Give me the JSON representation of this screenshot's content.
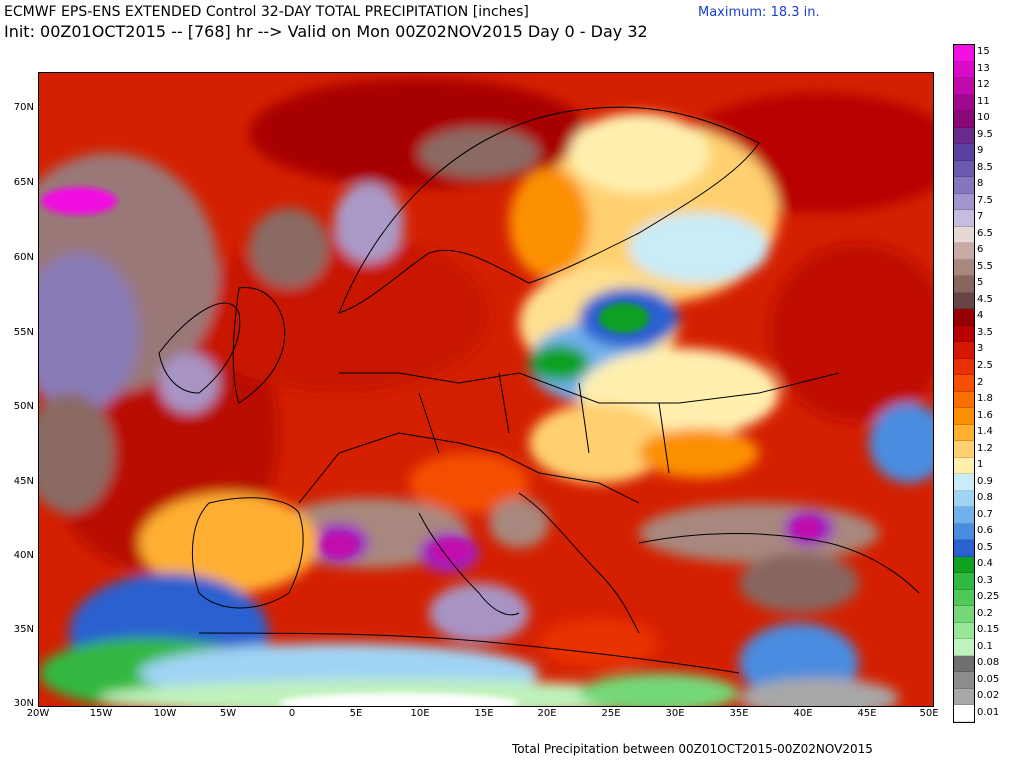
{
  "header": {
    "title_line1": "ECMWF EPS-ENS EXTENDED Control 32-DAY TOTAL PRECIPITATION [inches]",
    "title_line2": "Init: 00Z01OCT2015 -- [768] hr --> Valid on Mon 00Z02NOV2015  Day 0 - Day 32",
    "maximum": "Maximum:  18.3 in."
  },
  "footer": {
    "caption": "Total Precipitation between 00Z01OCT2015-00Z02NOV2015"
  },
  "map": {
    "lat_labels": [
      "70N",
      "65N",
      "60N",
      "55N",
      "50N",
      "45N",
      "40N",
      "35N",
      "30N"
    ],
    "lon_labels": [
      "20W",
      "15W",
      "10W",
      "5W",
      "0",
      "5E",
      "10E",
      "15E",
      "20E",
      "25E",
      "30E",
      "35E",
      "40E",
      "45E",
      "50E"
    ],
    "legend": [
      {
        "label": "15",
        "color": "#f010e0"
      },
      {
        "label": "13",
        "color": "#d80cc8"
      },
      {
        "label": "12",
        "color": "#c00aac"
      },
      {
        "label": "11",
        "color": "#a00890"
      },
      {
        "label": "10",
        "color": "#880878"
      },
      {
        "label": "9.5",
        "color": "#6a2a8c"
      },
      {
        "label": "9",
        "color": "#5a40a0"
      },
      {
        "label": "8.5",
        "color": "#6c5aae"
      },
      {
        "label": "8",
        "color": "#8676be"
      },
      {
        "label": "7.5",
        "color": "#a294cc"
      },
      {
        "label": "7",
        "color": "#c6bce0"
      },
      {
        "label": "6.5",
        "color": "#e8d8d4"
      },
      {
        "label": "6",
        "color": "#c8aaa4"
      },
      {
        "label": "5.5",
        "color": "#a8887e"
      },
      {
        "label": "5",
        "color": "#886660"
      },
      {
        "label": "4.5",
        "color": "#6a4444"
      },
      {
        "label": "4",
        "color": "#960000"
      },
      {
        "label": "3.5",
        "color": "#b80000"
      },
      {
        "label": "3",
        "color": "#d41800"
      },
      {
        "label": "2.5",
        "color": "#e83000"
      },
      {
        "label": "2",
        "color": "#f45000"
      },
      {
        "label": "1.8",
        "color": "#fa7000"
      },
      {
        "label": "1.6",
        "color": "#fc9000"
      },
      {
        "label": "1.4",
        "color": "#ffb030"
      },
      {
        "label": "1.2",
        "color": "#ffd070"
      },
      {
        "label": "1",
        "color": "#fff0b0"
      },
      {
        "label": "0.9",
        "color": "#c8ecf8"
      },
      {
        "label": "0.8",
        "color": "#a0d4f4"
      },
      {
        "label": "0.7",
        "color": "#70b0ec"
      },
      {
        "label": "0.6",
        "color": "#4a8ce0"
      },
      {
        "label": "0.5",
        "color": "#2a60d0"
      },
      {
        "label": "0.4",
        "color": "#10a020"
      },
      {
        "label": "0.3",
        "color": "#30b840"
      },
      {
        "label": "0.25",
        "color": "#50c85a"
      },
      {
        "label": "0.2",
        "color": "#74d878"
      },
      {
        "label": "0.15",
        "color": "#98e698"
      },
      {
        "label": "0.1",
        "color": "#c0f2bc"
      },
      {
        "label": "0.08",
        "color": "#707070"
      },
      {
        "label": "0.05",
        "color": "#8c8c8c"
      },
      {
        "label": "0.02",
        "color": "#a8a8a8"
      },
      {
        "label": "0.01",
        "color": "#ffffff"
      }
    ]
  }
}
